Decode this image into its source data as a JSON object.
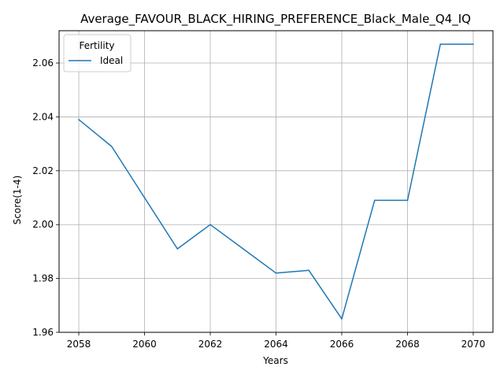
{
  "chart_data": {
    "type": "line",
    "title": "Average_FAVOUR_BLACK_HIRING_PREFERENCE_Black_Male_Q4_IQ",
    "xlabel": "Years",
    "ylabel": "Score(1-4)",
    "xlim": [
      2057.4,
      2070.6
    ],
    "ylim": [
      1.96,
      2.072
    ],
    "x_ticks": [
      2058,
      2060,
      2062,
      2064,
      2066,
      2068,
      2070
    ],
    "y_ticks": [
      1.96,
      1.98,
      2.0,
      2.02,
      2.04,
      2.06
    ],
    "y_tick_labels": [
      "1.96",
      "1.98",
      "2.00",
      "2.02",
      "2.04",
      "2.06"
    ],
    "grid": true,
    "legend": {
      "title": "Fertility",
      "placement": "top-left"
    },
    "series": [
      {
        "name": "Ideal",
        "color": "#1f77b4",
        "x": [
          2058,
          2059,
          2060,
          2061,
          2062,
          2063,
          2064,
          2065,
          2066,
          2067,
          2068,
          2069,
          2070
        ],
        "values": [
          2.039,
          2.029,
          2.01,
          1.991,
          2.0,
          1.991,
          1.982,
          1.983,
          1.965,
          2.009,
          2.009,
          2.067,
          2.067
        ]
      }
    ]
  }
}
